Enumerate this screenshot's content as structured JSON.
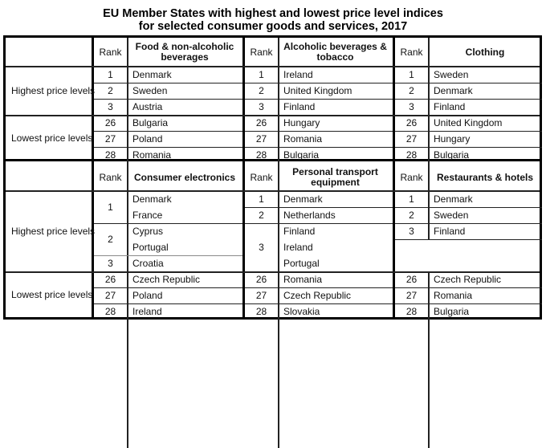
{
  "title": {
    "line1": "EU Member States with highest and lowest price level indices",
    "line2": "for selected consumer goods and services, 2017"
  },
  "row_groups": {
    "highest": "Highest price levels",
    "lowest": "Lowest price levels"
  },
  "rank_label": "Rank",
  "blocks": [
    {
      "categories": [
        {
          "name": "Food & non-alcoholic beverages",
          "highest": [
            {
              "rank": "1",
              "countries": [
                "Denmark"
              ]
            },
            {
              "rank": "2",
              "countries": [
                "Sweden"
              ]
            },
            {
              "rank": "3",
              "countries": [
                "Austria"
              ]
            }
          ],
          "lowest": [
            {
              "rank": "26",
              "countries": [
                "Bulgaria"
              ]
            },
            {
              "rank": "27",
              "countries": [
                "Poland"
              ]
            },
            {
              "rank": "28",
              "countries": [
                "Romania"
              ]
            }
          ]
        },
        {
          "name": "Alcoholic beverages & tobacco",
          "highest": [
            {
              "rank": "1",
              "countries": [
                "Ireland"
              ]
            },
            {
              "rank": "2",
              "countries": [
                "United Kingdom"
              ]
            },
            {
              "rank": "3",
              "countries": [
                "Finland"
              ]
            }
          ],
          "lowest": [
            {
              "rank": "26",
              "countries": [
                "Hungary"
              ]
            },
            {
              "rank": "27",
              "countries": [
                "Romania"
              ]
            },
            {
              "rank": "28",
              "countries": [
                "Bulgaria"
              ]
            }
          ]
        },
        {
          "name": "Clothing",
          "highest": [
            {
              "rank": "1",
              "countries": [
                "Sweden"
              ]
            },
            {
              "rank": "2",
              "countries": [
                "Denmark"
              ]
            },
            {
              "rank": "3",
              "countries": [
                "Finland"
              ]
            }
          ],
          "lowest": [
            {
              "rank": "26",
              "countries": [
                "United Kingdom"
              ]
            },
            {
              "rank": "27",
              "countries": [
                "Hungary"
              ]
            },
            {
              "rank": "28",
              "countries": [
                "Bulgaria"
              ]
            }
          ]
        }
      ]
    },
    {
      "categories": [
        {
          "name": "Consumer electronics",
          "highest": [
            {
              "rank": "1",
              "countries": [
                "Denmark",
                "France"
              ]
            },
            {
              "rank": "2",
              "countries": [
                "Cyprus",
                "Portugal"
              ]
            },
            {
              "rank": "3",
              "countries": [
                "Croatia"
              ]
            }
          ],
          "lowest": [
            {
              "rank": "26",
              "countries": [
                "Czech Republic"
              ]
            },
            {
              "rank": "27",
              "countries": [
                "Poland"
              ]
            },
            {
              "rank": "28",
              "countries": [
                "Ireland"
              ]
            }
          ]
        },
        {
          "name": "Personal transport equipment",
          "highest": [
            {
              "rank": "1",
              "countries": [
                "Denmark"
              ]
            },
            {
              "rank": "2",
              "countries": [
                "Netherlands"
              ]
            },
            {
              "rank": "3",
              "countries": [
                "Finland",
                "Ireland",
                "Portugal"
              ]
            }
          ],
          "lowest": [
            {
              "rank": "26",
              "countries": [
                "Romania"
              ]
            },
            {
              "rank": "27",
              "countries": [
                "Czech Republic"
              ]
            },
            {
              "rank": "28",
              "countries": [
                "Slovakia"
              ]
            }
          ]
        },
        {
          "name": "Restaurants & hotels",
          "highest": [
            {
              "rank": "1",
              "countries": [
                "Denmark"
              ]
            },
            {
              "rank": "2",
              "countries": [
                "Sweden"
              ]
            },
            {
              "rank": "3",
              "countries": [
                "Finland"
              ]
            }
          ],
          "lowest": [
            {
              "rank": "26",
              "countries": [
                "Czech Republic"
              ]
            },
            {
              "rank": "27",
              "countries": [
                "Romania"
              ]
            },
            {
              "rank": "28",
              "countries": [
                "Bulgaria"
              ]
            }
          ]
        }
      ]
    }
  ]
}
